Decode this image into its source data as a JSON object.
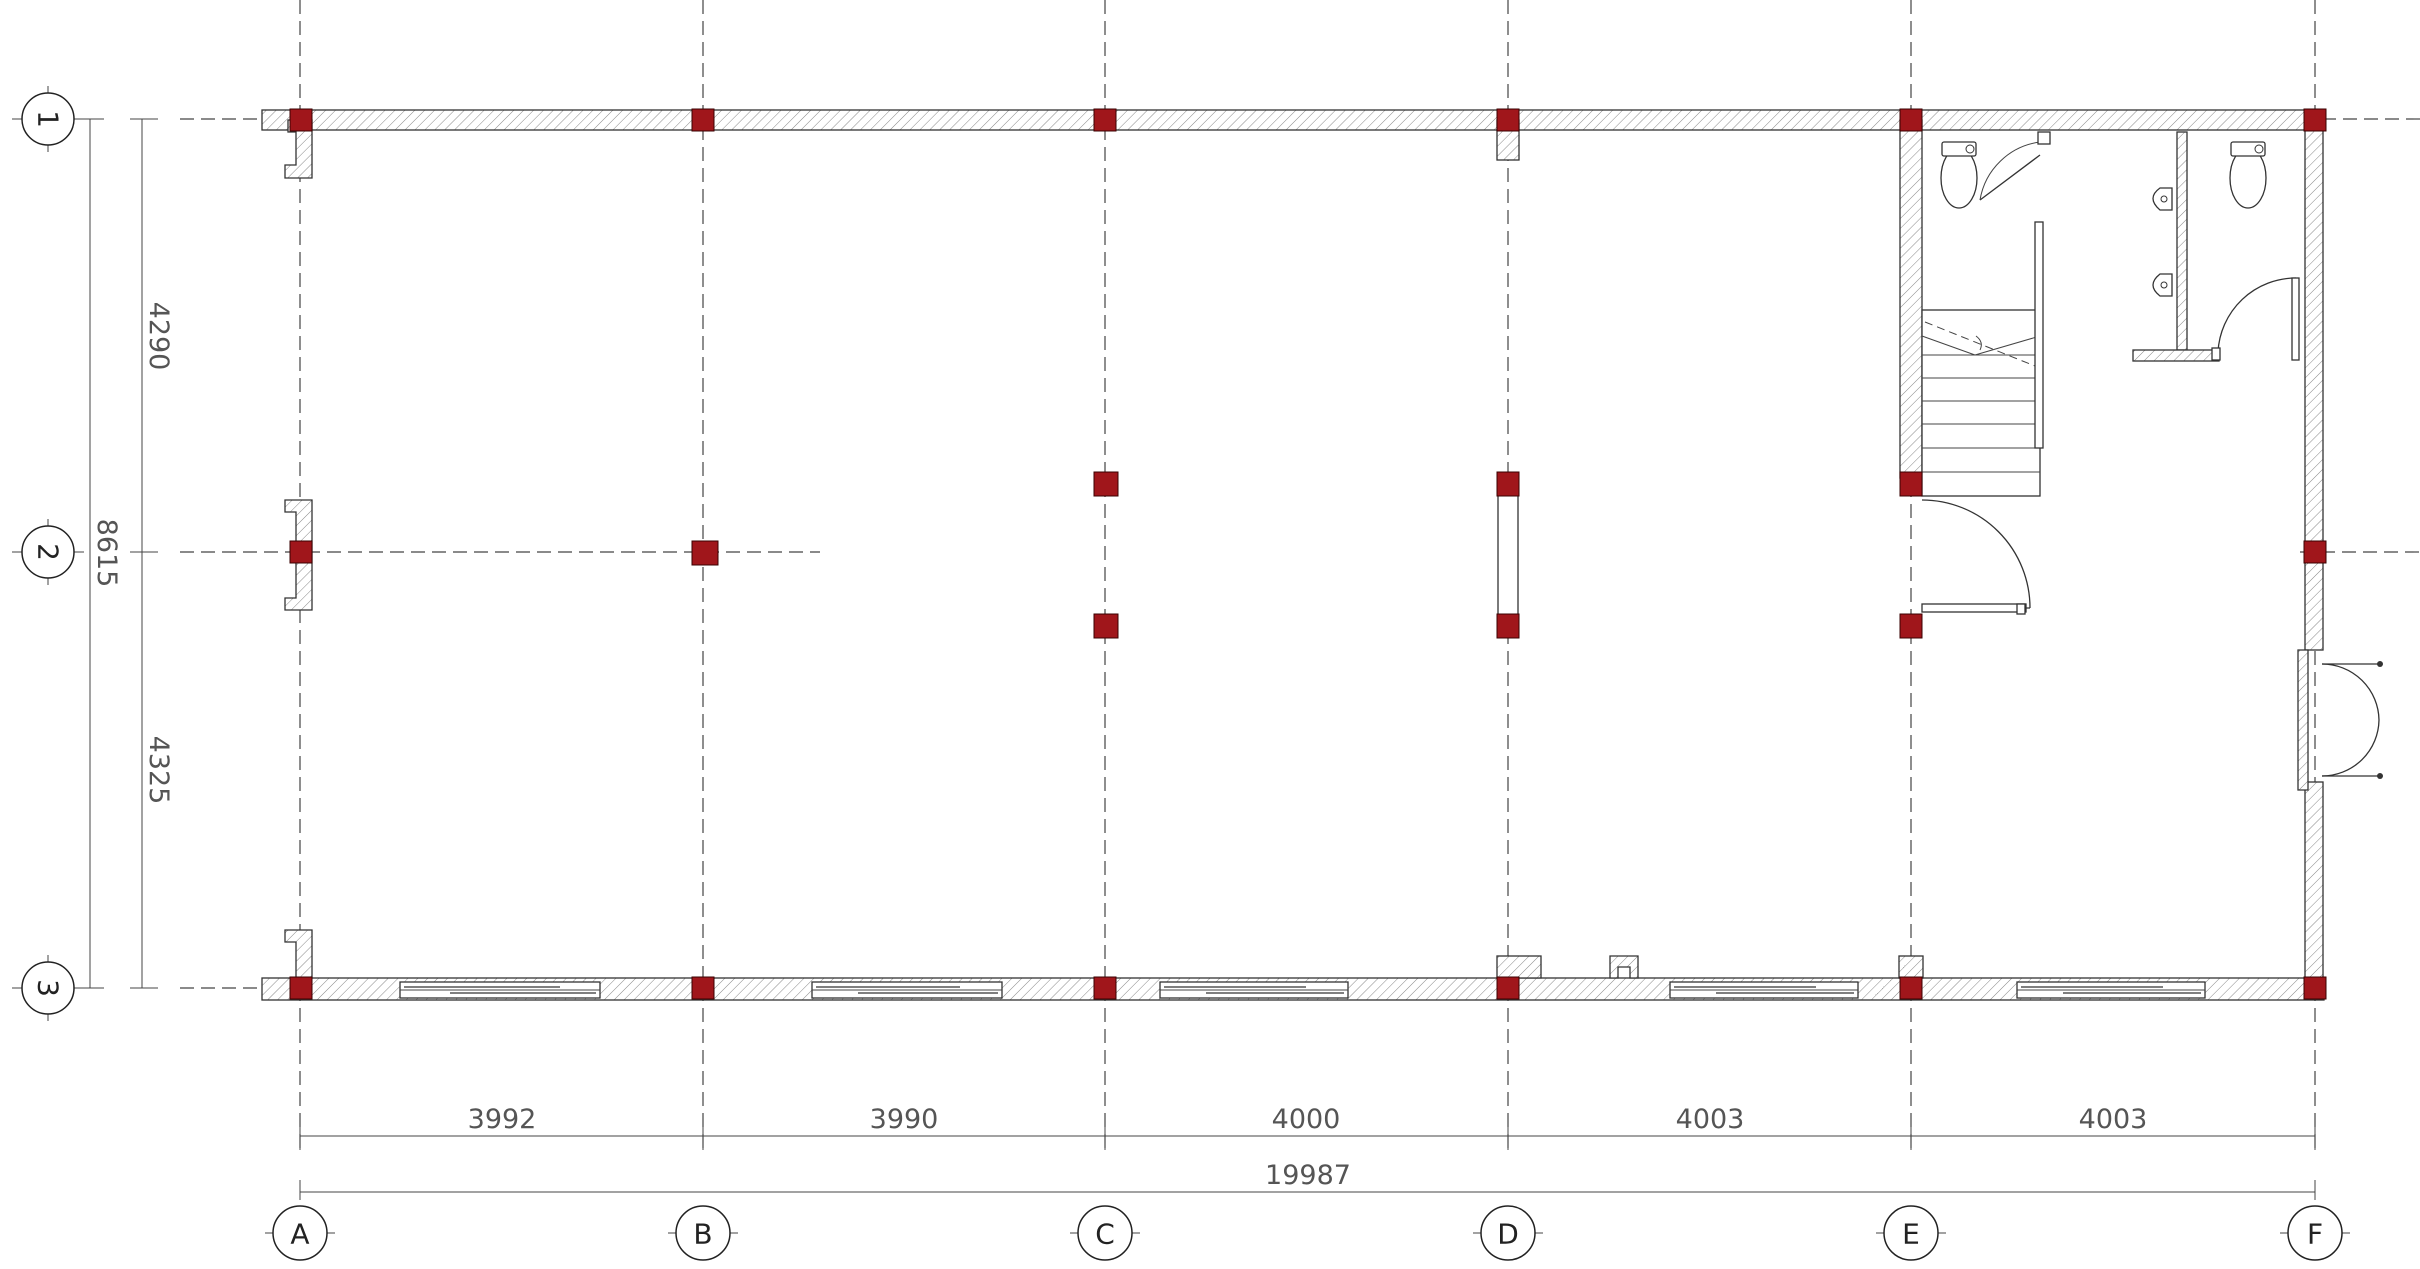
{
  "grid_columns": [
    "A",
    "B",
    "C",
    "D",
    "E",
    "F"
  ],
  "grid_rows": [
    "1",
    "2",
    "3"
  ],
  "dimensions": {
    "spans_x": [
      "3992",
      "3990",
      "4000",
      "4003",
      "4003"
    ],
    "total_x": "19987",
    "spans_y": [
      "4290",
      "4325"
    ],
    "total_y": "8615"
  },
  "colors": {
    "column_fill": "#a0161b",
    "line": "#333333"
  }
}
